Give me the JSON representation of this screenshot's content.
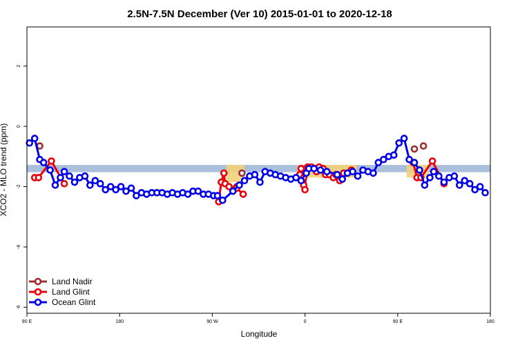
{
  "chart_data": {
    "type": "line",
    "title": "2.5N-7.5N December (Ver 10)   2015-01-01 to 2020-12-18",
    "xlabel": "Longitude",
    "ylabel": "XCO2 - MLO trend (ppm)",
    "xlim": [
      90,
      450
    ],
    "ylim": [
      -6.2,
      3.3
    ],
    "x_ticks": [
      {
        "value": 90,
        "label": "90 E"
      },
      {
        "value": 162,
        "label": "180"
      },
      {
        "value": 234,
        "label": "90 W"
      },
      {
        "value": 306,
        "label": "0"
      },
      {
        "value": 378,
        "label": "90 E"
      },
      {
        "value": 450,
        "label": "180"
      }
    ],
    "y_ticks": [
      {
        "value": -6,
        "label": "-6"
      },
      {
        "value": -4,
        "label": "-4"
      },
      {
        "value": -2,
        "label": "-2"
      },
      {
        "value": 0,
        "label": "0"
      },
      {
        "value": 2,
        "label": "2"
      }
    ],
    "band": {
      "y_low": -1.52,
      "y_high": -1.28,
      "color": "#a9bfdc"
    },
    "highlights": [
      {
        "x_start": 245,
        "x_end": 259,
        "y_low": -1.85,
        "y_high": -1.28,
        "color": "#f2d27a"
      },
      {
        "x_start": 300,
        "x_end": 346,
        "y_low": -1.7,
        "y_high": -1.28,
        "color": "#f2d27a"
      },
      {
        "x_start": 385,
        "x_end": 402,
        "y_low": -1.7,
        "y_high": -1.28,
        "color": "#f2d27a"
      }
    ],
    "legend_position": "bottom-left",
    "series": [
      {
        "name": "Land Nadir",
        "color": "#9b2f2f",
        "line": false,
        "points": [
          [
            100,
            -0.65
          ],
          [
            250,
            -2.1
          ],
          [
            253,
            -2.0
          ],
          [
            257,
            -1.55
          ],
          [
            391,
            -0.75
          ],
          [
            398,
            -0.65
          ]
        ]
      },
      {
        "name": "Land Glint",
        "color": "#e8000b",
        "line": true,
        "segments": [
          [
            [
              96,
              -1.7
            ],
            [
              99,
              -1.7
            ],
            [
              109,
              -1.15
            ],
            [
              119,
              -1.9
            ]
          ],
          [
            [
              239,
              -2.5
            ],
            [
              241,
              -1.85
            ],
            [
              243,
              -1.55
            ],
            [
              244,
              -1.9
            ],
            [
              247,
              -2.0
            ],
            [
              253,
              -2.05
            ],
            [
              258,
              -2.25
            ]
          ],
          [
            [
              302,
              -1.6
            ],
            [
              303,
              -1.4
            ],
            [
              305,
              -1.7
            ],
            [
              305,
              -1.95
            ],
            [
              306,
              -2.1
            ],
            [
              307,
              -1.45
            ],
            [
              308,
              -1.35
            ],
            [
              311,
              -1.35
            ],
            [
              315,
              -1.5
            ],
            [
              317,
              -1.35
            ],
            [
              320,
              -1.4
            ],
            [
              322,
              -1.6
            ],
            [
              325,
              -1.6
            ],
            [
              328,
              -1.7
            ],
            [
              330,
              -1.6
            ],
            [
              333,
              -1.8
            ],
            [
              336,
              -1.55
            ],
            [
              339,
              -1.55
            ],
            [
              342,
              -1.45
            ]
          ],
          [
            [
              390,
              -1.2
            ],
            [
              393,
              -1.7
            ],
            [
              396,
              -1.7
            ],
            [
              405,
              -1.15
            ],
            [
              414,
              -1.9
            ]
          ]
        ]
      },
      {
        "name": "Ocean Glint",
        "color": "#0000e6",
        "line": true,
        "points": [
          [
            92,
            -0.55
          ],
          [
            96,
            -0.4
          ],
          [
            100,
            -1.1
          ],
          [
            103,
            -1.2
          ],
          [
            108,
            -1.45
          ],
          [
            112,
            -1.95
          ],
          [
            116,
            -1.7
          ],
          [
            119,
            -1.5
          ],
          [
            123,
            -1.65
          ],
          [
            127,
            -1.85
          ],
          [
            131,
            -1.7
          ],
          [
            135,
            -1.65
          ],
          [
            139,
            -1.95
          ],
          [
            143,
            -1.8
          ],
          [
            147,
            -1.9
          ],
          [
            151,
            -2.1
          ],
          [
            155,
            -2.0
          ],
          [
            159,
            -2.1
          ],
          [
            163,
            -2.0
          ],
          [
            167,
            -2.15
          ],
          [
            171,
            -2.05
          ],
          [
            175,
            -2.3
          ],
          [
            179,
            -2.2
          ],
          [
            183,
            -2.25
          ],
          [
            187,
            -2.2
          ],
          [
            191,
            -2.2
          ],
          [
            195,
            -2.2
          ],
          [
            199,
            -2.25
          ],
          [
            203,
            -2.2
          ],
          [
            207,
            -2.25
          ],
          [
            211,
            -2.2
          ],
          [
            215,
            -2.25
          ],
          [
            219,
            -2.15
          ],
          [
            223,
            -2.15
          ],
          [
            227,
            -2.25
          ],
          [
            231,
            -2.25
          ],
          [
            235,
            -2.3
          ],
          [
            238,
            -2.3
          ],
          [
            242,
            -2.45
          ],
          [
            250,
            -2.15
          ],
          [
            255,
            -1.95
          ],
          [
            259,
            -1.8
          ],
          [
            263,
            -1.65
          ],
          [
            267,
            -1.6
          ],
          [
            271,
            -1.85
          ],
          [
            275,
            -1.5
          ],
          [
            279,
            -1.55
          ],
          [
            283,
            -1.6
          ],
          [
            287,
            -1.65
          ],
          [
            291,
            -1.7
          ],
          [
            295,
            -1.75
          ],
          [
            299,
            -1.7
          ],
          [
            303,
            -1.8
          ],
          [
            307,
            -1.55
          ],
          [
            309,
            -1.4
          ],
          [
            313,
            -1.4
          ],
          [
            318,
            -1.45
          ],
          [
            323,
            -1.5
          ],
          [
            331,
            -1.6
          ],
          [
            335,
            -1.75
          ],
          [
            339,
            -1.55
          ],
          [
            343,
            -1.5
          ],
          [
            347,
            -1.65
          ],
          [
            351,
            -1.45
          ],
          [
            355,
            -1.5
          ],
          [
            359,
            -1.55
          ],
          [
            363,
            -1.2
          ],
          [
            367,
            -1.1
          ],
          [
            371,
            -1.0
          ],
          [
            375,
            -0.95
          ],
          [
            379,
            -0.55
          ],
          [
            383,
            -0.4
          ],
          [
            387,
            -1.1
          ],
          [
            391,
            -1.2
          ],
          [
            395,
            -1.45
          ],
          [
            399,
            -1.95
          ],
          [
            403,
            -1.7
          ],
          [
            406,
            -1.5
          ],
          [
            410,
            -1.65
          ],
          [
            414,
            -1.85
          ],
          [
            418,
            -1.7
          ],
          [
            422,
            -1.65
          ],
          [
            426,
            -1.95
          ],
          [
            430,
            -1.8
          ],
          [
            434,
            -1.9
          ],
          [
            438,
            -2.1
          ],
          [
            442,
            -2.0
          ],
          [
            446,
            -2.2
          ]
        ]
      }
    ]
  }
}
